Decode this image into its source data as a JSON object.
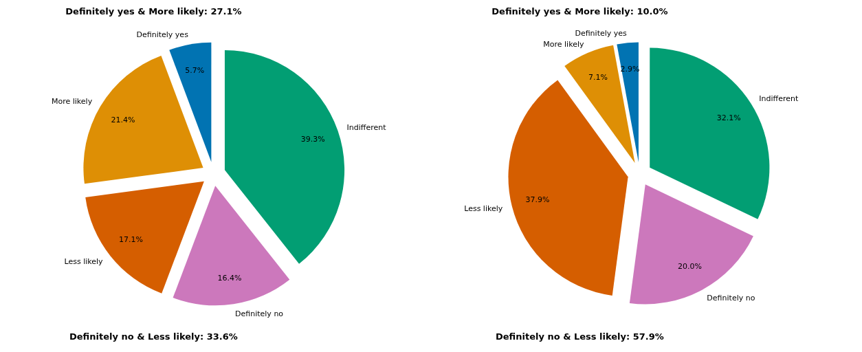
{
  "chart_data": [
    {
      "type": "pie",
      "categories": [
        "Definitely yes",
        "More likely",
        "Less likely",
        "Definitely no",
        "Indifferent"
      ],
      "values": [
        5.7,
        21.4,
        17.1,
        16.4,
        39.3
      ],
      "colors": [
        "#0173b2",
        "#de8f05",
        "#d55e00",
        "#cc78bc",
        "#029e73"
      ],
      "value_labels": [
        "5.7%",
        "21.4%",
        "17.1%",
        "16.4%",
        "39.3%"
      ],
      "annotations": [
        "Definitely yes & More likely: 27.1%",
        "Definitely no & Less likely: 33.6%"
      ]
    },
    {
      "type": "pie",
      "categories": [
        "Definitely yes",
        "More likely",
        "Less likely",
        "Definitely no",
        "Indifferent"
      ],
      "values": [
        2.9,
        7.1,
        37.9,
        20.0,
        32.1
      ],
      "colors": [
        "#0173b2",
        "#de8f05",
        "#d55e00",
        "#cc78bc",
        "#029e73"
      ],
      "value_labels": [
        "2.9%",
        "7.1%",
        "37.9%",
        "20.0%",
        "32.1%"
      ],
      "annotations": [
        "Definitely yes & More likely: 10.0%",
        "Definitely no & Less likely: 57.9%"
      ]
    }
  ]
}
